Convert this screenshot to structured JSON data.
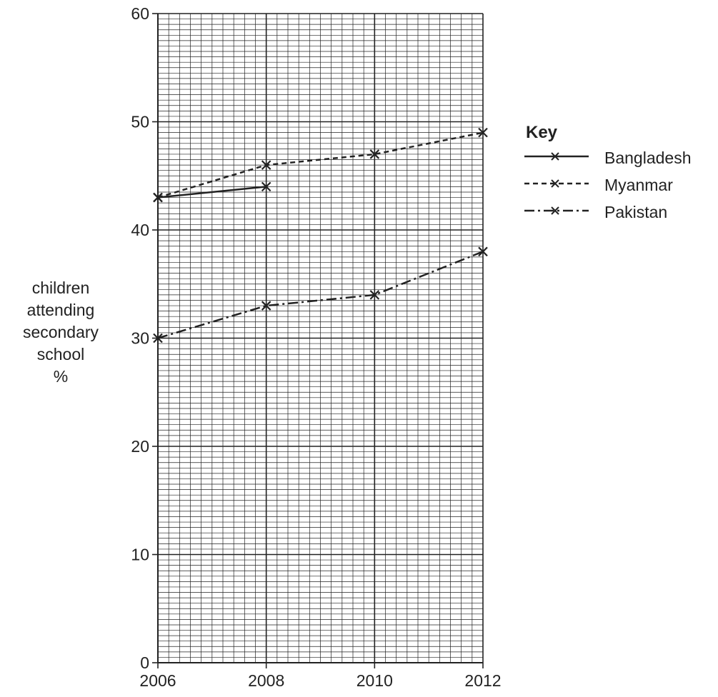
{
  "chart_data": {
    "type": "line",
    "title": "",
    "xlabel": "",
    "ylabel_lines": [
      "children",
      "attending",
      "secondary",
      "school",
      "%"
    ],
    "x_ticks": [
      "2006",
      "2008",
      "2010",
      "2012"
    ],
    "y_ticks": [
      "0",
      "10",
      "20",
      "30",
      "40",
      "50",
      "60"
    ],
    "xlim": [
      2006,
      2012
    ],
    "ylim": [
      0,
      60
    ],
    "grid": true,
    "legend_position": "right",
    "legend_title": "Key",
    "series": [
      {
        "name": "Bangladesh",
        "style": "solid",
        "x": [
          2006,
          2008
        ],
        "y": [
          43,
          44
        ]
      },
      {
        "name": "Myanmar",
        "style": "dashed",
        "x": [
          2006,
          2008,
          2010,
          2012
        ],
        "y": [
          43,
          46,
          47,
          49
        ]
      },
      {
        "name": "Pakistan",
        "style": "dash-dot",
        "x": [
          2006,
          2008,
          2010,
          2012
        ],
        "y": [
          30,
          33,
          34,
          38
        ]
      }
    ]
  }
}
